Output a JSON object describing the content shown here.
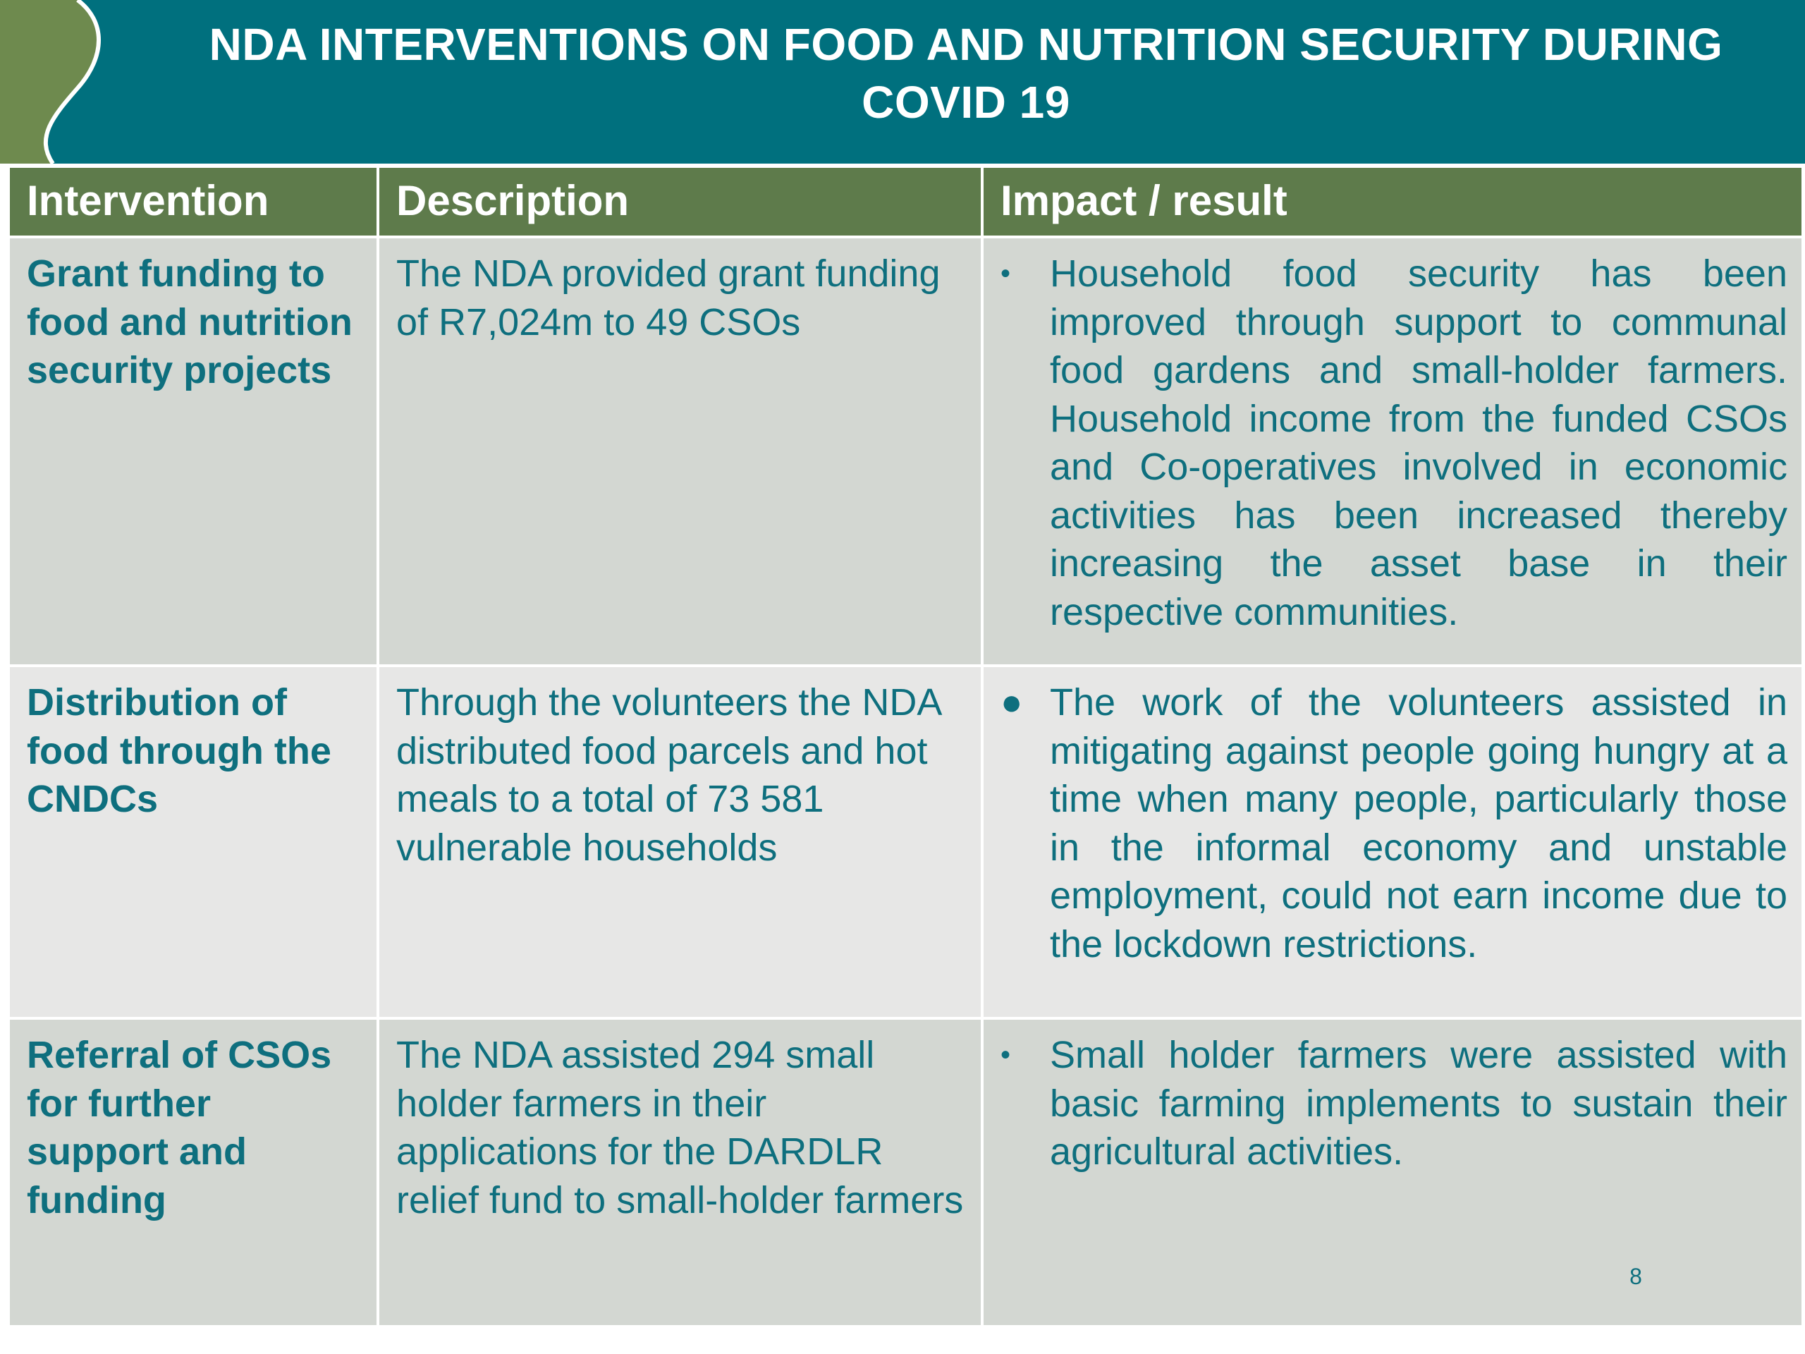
{
  "header": {
    "title": "NDA INTERVENTIONS ON FOOD AND NUTRITION SECURITY DURING COVID 19"
  },
  "table": {
    "columns": [
      "Intervention",
      "Description",
      "Impact / result"
    ],
    "rows": [
      {
        "intervention": "Grant funding to food and nutrition security projects",
        "description": "The NDA provided grant funding of R7,024m to 49 CSOs",
        "bullet": "•",
        "impact": "Household food security has been improved through support to communal food gardens and small-holder farmers. Household income from the funded CSOs and Co-operatives involved in economic activities has been increased thereby increasing the asset base in their respective communities."
      },
      {
        "intervention": "Distribution of food through the CNDCs",
        "description": "Through the volunteers the NDA distributed food parcels and hot meals to a total of 73 581 vulnerable households",
        "bullet": "●",
        "impact": "The work of the volunteers assisted in mitigating against people going hungry at a time when many people, particularly those in the informal economy and unstable employment, could not earn income due to the lockdown restrictions."
      },
      {
        "intervention": "Referral of CSOs for further support and funding",
        "description": "The NDA assisted 294 small holder farmers in their applications for the DARDLR relief fund to small-holder farmers",
        "bullet": "•",
        "impact": "Small holder farmers were assisted with basic farming implements to sustain their agricultural activities."
      }
    ]
  },
  "footer": {
    "page_number": "8"
  },
  "colors": {
    "banner": "#00707e",
    "header_row": "#5e7b4b",
    "row_dark": "#d3d7d2",
    "row_light": "#e7e7e6",
    "text": "#0e6f7e",
    "swoosh": "#6e8a4e"
  }
}
